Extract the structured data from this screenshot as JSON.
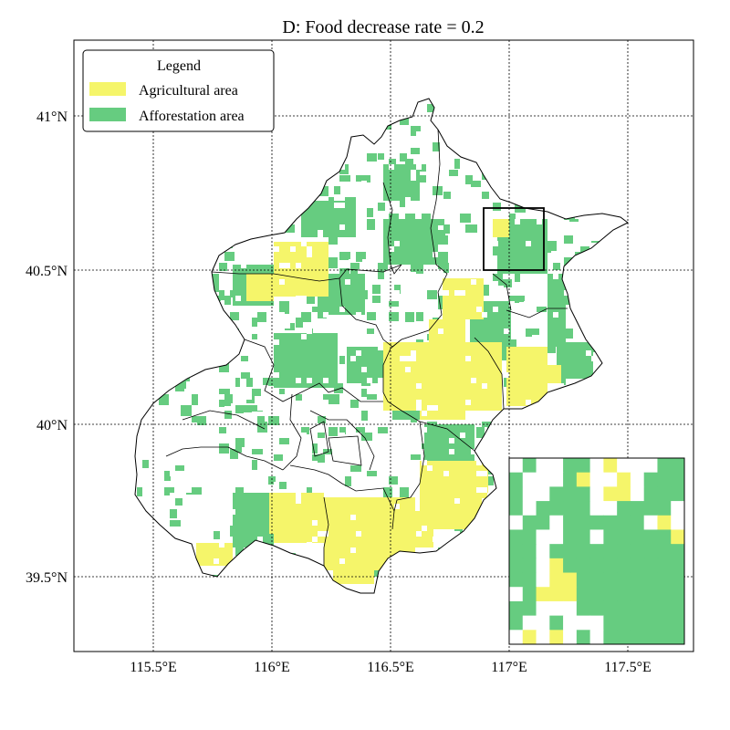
{
  "title": "D: Food decrease rate = 0.2",
  "x_ticks": [
    "115.5°E",
    "116°E",
    "116.5°E",
    "117°E",
    "117.5°E"
  ],
  "y_ticks": [
    "41°N",
    "40.5°N",
    "40°N",
    "39.5°N"
  ],
  "legend": {
    "title": "Legend",
    "items": [
      {
        "label": "Agricultural area",
        "color": "#f5f56a"
      },
      {
        "label": "Afforestation area",
        "color": "#66cc80"
      }
    ]
  },
  "colors": {
    "agricultural": "#f5f56a",
    "afforestation": "#66cc80",
    "boundary": "#000000",
    "grid": "#000000"
  },
  "inset_box_label": ""
}
